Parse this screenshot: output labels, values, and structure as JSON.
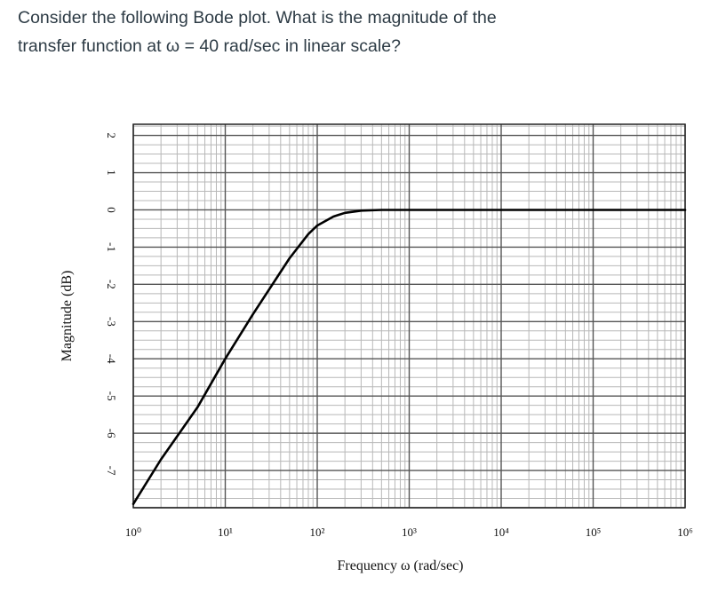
{
  "question": {
    "line1": "Consider the following Bode plot. What is the magnitude of the",
    "line2": "transfer function at ω = 40 rad/sec in linear scale?"
  },
  "chart_data": {
    "type": "line",
    "title": "",
    "xlabel": "Frequency ω (rad/sec)",
    "ylabel": "Magnitude (dB)",
    "x_scale": "log",
    "xlim": [
      1,
      1000000
    ],
    "ylim": [
      -8,
      2.3
    ],
    "grid": true,
    "x_tick_labels": [
      {
        "value": 1,
        "label": "10⁰"
      },
      {
        "value": 10,
        "label": "10¹"
      },
      {
        "value": 100,
        "label": "10²"
      },
      {
        "value": 1000,
        "label": "10³"
      },
      {
        "value": 10000,
        "label": "10⁴"
      },
      {
        "value": 100000,
        "label": "10⁵"
      },
      {
        "value": 1000000,
        "label": "10⁶"
      }
    ],
    "y_tick_labels": [
      {
        "value": 2,
        "label": "2"
      },
      {
        "value": 1,
        "label": "1"
      },
      {
        "value": 0,
        "label": "0"
      },
      {
        "value": -1,
        "label": "-1"
      },
      {
        "value": -2,
        "label": "-2"
      },
      {
        "value": -3,
        "label": "-3"
      },
      {
        "value": -4,
        "label": "-4"
      },
      {
        "value": -5,
        "label": "-5"
      },
      {
        "value": -6,
        "label": "-6"
      },
      {
        "value": -7,
        "label": "-7"
      }
    ],
    "series": [
      {
        "color": "#000000",
        "x": [
          1,
          2,
          5,
          10,
          20,
          50,
          80,
          100,
          150,
          200,
          300,
          500,
          1000,
          10000,
          100000,
          1000000
        ],
        "y": [
          -7.9,
          -6.7,
          -5.3,
          -4.0,
          -2.8,
          -1.3,
          -0.65,
          -0.42,
          -0.18,
          -0.08,
          -0.02,
          0,
          0,
          0,
          0,
          0
        ]
      }
    ]
  }
}
